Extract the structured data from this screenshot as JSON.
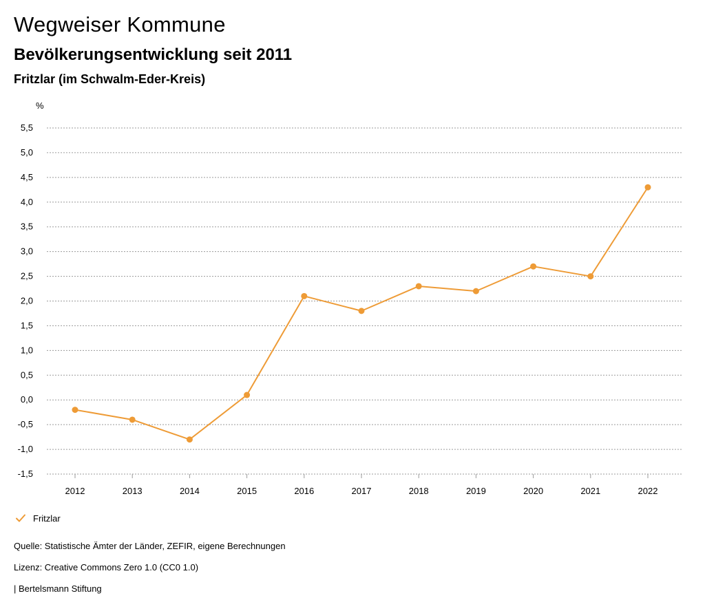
{
  "header": {
    "title": "Wegweiser Kommune",
    "subtitle": "Bevölkerungsentwicklung seit 2011",
    "region": "Fritzlar (im Schwalm-Eder-Kreis)"
  },
  "chart_data": {
    "type": "line",
    "title": "Bevölkerungsentwicklung seit 2011",
    "subtitle": "Fritzlar (im Schwalm-Eder-Kreis)",
    "xlabel": "",
    "ylabel": "%",
    "categories": [
      "2012",
      "2013",
      "2014",
      "2015",
      "2016",
      "2017",
      "2018",
      "2019",
      "2020",
      "2021",
      "2022"
    ],
    "series": [
      {
        "name": "Fritzlar",
        "color": "#ee9b36",
        "values": [
          -0.2,
          -0.4,
          -0.8,
          0.1,
          2.1,
          1.8,
          2.3,
          2.2,
          2.7,
          2.5,
          4.3
        ]
      }
    ],
    "ylim": [
      -1.5,
      5.5
    ],
    "yticks": [
      5.5,
      5.0,
      4.5,
      4.0,
      3.5,
      3.0,
      2.5,
      2.0,
      1.5,
      1.0,
      0.5,
      0.0,
      -0.5,
      -1.0,
      -1.5
    ],
    "ytick_labels": [
      "5,5",
      "5,0",
      "4,5",
      "4,0",
      "3,5",
      "3,0",
      "2,5",
      "2,0",
      "1,5",
      "1,0",
      "0,5",
      "0,0",
      "-0,5",
      "-1,0",
      "-1,5"
    ],
    "grid": true,
    "legend": "bottom-left"
  },
  "legend": {
    "label": "Fritzlar",
    "icon": "check-icon"
  },
  "footer": {
    "source": "Quelle: Statistische Ämter der Länder, ZEFIR, eigene Berechnungen",
    "license": "Lizenz: Creative Commons Zero 1.0 (CC0 1.0)",
    "publisher": "| Bertelsmann Stiftung"
  }
}
